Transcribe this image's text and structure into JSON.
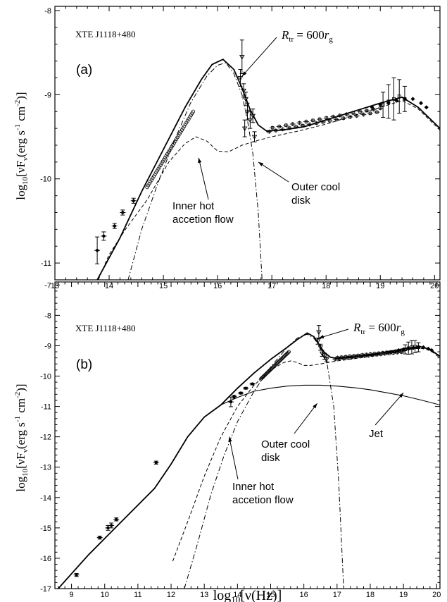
{
  "chart_data": [
    {
      "type": "line",
      "panel_label": "(a)",
      "source_label": "XTE J1118+480",
      "xlabel": "",
      "ylabel": "log10[νFν(erg s-1 cm-2)]",
      "ylabel_parts": {
        "base": "log",
        "base_sub": "10",
        "open": "[νF",
        "nu_sub": "ν",
        "unit": "(erg s",
        "s_exp": "-1",
        "cm": " cm",
        "cm_exp": "-2",
        "close": ")]"
      },
      "xlim": [
        13,
        20.1
      ],
      "ylim": [
        -11.2,
        -7.95
      ],
      "xticks": [
        13,
        14,
        15,
        16,
        17,
        18,
        19,
        20
      ],
      "yticks": [
        -11,
        -10,
        -9,
        -8
      ],
      "annotations": [
        {
          "id": "rtr",
          "parts": {
            "r": "R",
            "r_sub": "tr",
            "eq": " = 600",
            "rg": "r",
            "rg_sub": "g"
          },
          "arrow_to": [
            16.45,
            -8.78
          ]
        },
        {
          "id": "inner",
          "lines": [
            "Inner hot",
            "accetion flow"
          ],
          "arrow_to": [
            15.65,
            -9.75
          ]
        },
        {
          "id": "outer",
          "lines": [
            "Outer cool",
            "disk"
          ],
          "arrow_to": [
            16.75,
            -9.8
          ]
        }
      ],
      "series": [
        {
          "role": "total",
          "style": "solid",
          "points": [
            [
              13.78,
              -11.2
            ],
            [
              14.2,
              -10.7
            ],
            [
              14.6,
              -10.15
            ],
            [
              15.0,
              -9.65
            ],
            [
              15.4,
              -9.15
            ],
            [
              15.7,
              -8.82
            ],
            [
              15.9,
              -8.64
            ],
            [
              16.1,
              -8.58
            ],
            [
              16.3,
              -8.7
            ],
            [
              16.45,
              -8.92
            ],
            [
              16.6,
              -9.18
            ],
            [
              16.75,
              -9.36
            ],
            [
              16.9,
              -9.43
            ],
            [
              17.2,
              -9.42
            ],
            [
              17.6,
              -9.38
            ],
            [
              18.0,
              -9.3
            ],
            [
              18.5,
              -9.2
            ],
            [
              19.0,
              -9.1
            ],
            [
              19.4,
              -9.03
            ],
            [
              19.7,
              -9.15
            ],
            [
              20.1,
              -9.4
            ]
          ]
        },
        {
          "role": "inner_flow",
          "style": "dashed",
          "points": [
            [
              13.8,
              -11.2
            ],
            [
              14.0,
              -10.9
            ],
            [
              14.3,
              -10.6
            ],
            [
              14.7,
              -10.25
            ],
            [
              15.1,
              -9.8
            ],
            [
              15.4,
              -9.58
            ],
            [
              15.6,
              -9.5
            ],
            [
              15.8,
              -9.55
            ],
            [
              16.0,
              -9.67
            ],
            [
              16.2,
              -9.68
            ],
            [
              16.45,
              -9.6
            ],
            [
              16.7,
              -9.55
            ],
            [
              17.0,
              -9.5
            ],
            [
              17.5,
              -9.43
            ],
            [
              18.0,
              -9.35
            ],
            [
              18.5,
              -9.25
            ],
            [
              19.0,
              -9.15
            ],
            [
              19.4,
              -9.07
            ],
            [
              19.7,
              -9.17
            ],
            [
              20.1,
              -9.42
            ]
          ]
        },
        {
          "role": "outer_disk",
          "style": "dashdot",
          "points": [
            [
              14.35,
              -11.2
            ],
            [
              14.6,
              -10.6
            ],
            [
              14.9,
              -10.05
            ],
            [
              15.2,
              -9.55
            ],
            [
              15.5,
              -9.1
            ],
            [
              15.8,
              -8.78
            ],
            [
              16.0,
              -8.65
            ],
            [
              16.15,
              -8.62
            ],
            [
              16.3,
              -8.75
            ],
            [
              16.45,
              -9.0
            ],
            [
              16.55,
              -9.3
            ],
            [
              16.65,
              -9.7
            ],
            [
              16.75,
              -10.4
            ],
            [
              16.82,
              -11.2
            ]
          ]
        }
      ],
      "observations": {
        "radio_ir_points": [
          {
            "x": 13.78,
            "y": -10.85,
            "err": 0.16
          },
          {
            "x": 13.9,
            "y": -10.68,
            "err": 0.05
          },
          {
            "x": 14.1,
            "y": -10.56,
            "err": 0.03
          },
          {
            "x": 14.25,
            "y": -10.4,
            "err": 0.03
          },
          {
            "x": 14.45,
            "y": -10.26,
            "err": 0.03
          }
        ],
        "optical_uv_circles": {
          "x_start": 14.7,
          "x_end": 15.55,
          "y_start": -10.1,
          "y_end": -9.2,
          "count": 42
        },
        "uv_triangles": [
          {
            "x": 16.45,
            "y": -8.55,
            "err": 0.2
          },
          {
            "x": 16.42,
            "y": -8.8,
            "err": 0.1
          },
          {
            "x": 16.48,
            "y": -8.95,
            "err": 0.08
          },
          {
            "x": 16.52,
            "y": -9.05,
            "err": 0.08
          },
          {
            "x": 16.55,
            "y": -9.2,
            "err": 0.1
          },
          {
            "x": 16.6,
            "y": -9.3,
            "err": 0.1
          },
          {
            "x": 16.65,
            "y": -9.25,
            "err": 0.08
          },
          {
            "x": 16.68,
            "y": -9.5,
            "err": 0.06
          },
          {
            "x": 16.5,
            "y": -9.4,
            "err": 0.1
          }
        ],
        "xray_squares": {
          "x_start": 16.95,
          "x_end": 19.0,
          "y_start": -9.42,
          "y_end": -9.18,
          "count": 34
        },
        "hard_xray_points": [
          {
            "x": 19.05,
            "y": -9.12,
            "err": 0.15
          },
          {
            "x": 19.15,
            "y": -9.08,
            "err": 0.2
          },
          {
            "x": 19.25,
            "y": -9.05,
            "err": 0.25
          },
          {
            "x": 19.35,
            "y": -9.02,
            "err": 0.2
          },
          {
            "x": 19.45,
            "y": -9.05,
            "err": 0.15
          }
        ],
        "diamonds": [
          {
            "x": 18.85,
            "y": -9.15
          },
          {
            "x": 19.0,
            "y": -9.12
          },
          {
            "x": 19.15,
            "y": -9.1
          },
          {
            "x": 19.3,
            "y": -9.07
          },
          {
            "x": 19.45,
            "y": -9.05
          },
          {
            "x": 19.6,
            "y": -9.05
          },
          {
            "x": 19.75,
            "y": -9.1
          },
          {
            "x": 19.85,
            "y": -9.15
          }
        ]
      }
    },
    {
      "type": "line",
      "panel_label": "(b)",
      "source_label": "XTE J1118+480",
      "xlabel": "log10[ν(Hz)]",
      "xlabel_parts": {
        "base": "log",
        "base_sub": "10",
        "rest": "[ν(Hz)]"
      },
      "ylabel": "log10[νFν(erg s-1 cm-2)]",
      "ylabel_parts": {
        "base": "log",
        "base_sub": "10",
        "open": "[νF",
        "nu_sub": "ν",
        "unit": "(erg s",
        "s_exp": "-1",
        "cm": " cm",
        "cm_exp": "-2",
        "close": ")]"
      },
      "xlim": [
        8.5,
        20.1
      ],
      "ylim": [
        -17,
        -6.9
      ],
      "xticks": [
        9,
        10,
        11,
        12,
        13,
        14,
        15,
        16,
        17,
        18,
        19,
        20
      ],
      "yticks": [
        -17,
        -16,
        -15,
        -14,
        -13,
        -12,
        -11,
        -10,
        -9,
        -8,
        -7
      ],
      "annotations": [
        {
          "id": "rtr",
          "parts": {
            "r": "R",
            "r_sub": "tr",
            "eq": " = 600",
            "rg": "r",
            "rg_sub": "g"
          },
          "arrow_to": [
            16.45,
            -8.75
          ]
        },
        {
          "id": "outer",
          "lines": [
            "Outer cool",
            "disk"
          ],
          "arrow_to": [
            16.4,
            -10.9
          ]
        },
        {
          "id": "inner",
          "lines": [
            "Inner hot",
            "accetion flow"
          ],
          "arrow_to": [
            13.75,
            -12.0
          ]
        },
        {
          "id": "jet",
          "lines": [
            "Jet"
          ],
          "arrow_to": [
            19.0,
            -10.55
          ]
        }
      ],
      "series": [
        {
          "role": "total",
          "style": "solid",
          "points": [
            [
              8.6,
              -17
            ],
            [
              9.5,
              -15.9
            ],
            [
              10.5,
              -14.8
            ],
            [
              11.5,
              -13.7
            ],
            [
              12.0,
              -12.9
            ],
            [
              12.5,
              -12.0
            ],
            [
              13.0,
              -11.35
            ],
            [
              13.5,
              -10.95
            ],
            [
              14.0,
              -10.4
            ],
            [
              14.5,
              -9.9
            ],
            [
              15.0,
              -9.45
            ],
            [
              15.5,
              -9.05
            ],
            [
              15.8,
              -8.8
            ],
            [
              16.1,
              -8.58
            ],
            [
              16.3,
              -8.7
            ],
            [
              16.45,
              -8.95
            ],
            [
              16.6,
              -9.2
            ],
            [
              16.8,
              -9.38
            ],
            [
              17.0,
              -9.42
            ],
            [
              17.5,
              -9.38
            ],
            [
              18.0,
              -9.3
            ],
            [
              18.5,
              -9.2
            ],
            [
              19.0,
              -9.1
            ],
            [
              19.5,
              -9.03
            ],
            [
              19.8,
              -9.12
            ],
            [
              20.1,
              -9.35
            ]
          ]
        },
        {
          "role": "jet",
          "style": "solid",
          "points": [
            [
              13.5,
              -10.95
            ],
            [
              14.0,
              -10.7
            ],
            [
              14.5,
              -10.5
            ],
            [
              15.0,
              -10.4
            ],
            [
              15.5,
              -10.33
            ],
            [
              16.0,
              -10.3
            ],
            [
              16.5,
              -10.3
            ],
            [
              17.0,
              -10.33
            ],
            [
              17.5,
              -10.38
            ],
            [
              18.0,
              -10.45
            ],
            [
              18.5,
              -10.55
            ],
            [
              19.0,
              -10.65
            ],
            [
              19.5,
              -10.78
            ],
            [
              20.1,
              -10.95
            ]
          ]
        },
        {
          "role": "inner_flow",
          "style": "dashed",
          "points": [
            [
              12.05,
              -16.1
            ],
            [
              12.5,
              -14.8
            ],
            [
              13.0,
              -13.3
            ],
            [
              13.5,
              -12.0
            ],
            [
              14.0,
              -11.0
            ],
            [
              14.5,
              -10.3
            ],
            [
              15.0,
              -9.8
            ],
            [
              15.4,
              -9.55
            ],
            [
              15.6,
              -9.5
            ],
            [
              15.8,
              -9.55
            ],
            [
              16.0,
              -9.65
            ],
            [
              16.2,
              -9.65
            ],
            [
              16.5,
              -9.6
            ],
            [
              17.0,
              -9.5
            ],
            [
              17.5,
              -9.43
            ],
            [
              18.0,
              -9.35
            ],
            [
              18.5,
              -9.25
            ],
            [
              19.0,
              -9.15
            ],
            [
              19.5,
              -9.08
            ],
            [
              19.8,
              -9.15
            ],
            [
              20.1,
              -9.4
            ]
          ]
        },
        {
          "role": "outer_disk",
          "style": "dashdot",
          "points": [
            [
              12.4,
              -17
            ],
            [
              12.8,
              -15.5
            ],
            [
              13.2,
              -13.9
            ],
            [
              13.6,
              -12.6
            ],
            [
              14.0,
              -11.5
            ],
            [
              14.5,
              -10.5
            ],
            [
              15.0,
              -9.7
            ],
            [
              15.5,
              -9.05
            ],
            [
              15.8,
              -8.75
            ],
            [
              16.1,
              -8.62
            ],
            [
              16.3,
              -8.75
            ],
            [
              16.5,
              -9.05
            ],
            [
              16.7,
              -9.6
            ],
            [
              16.9,
              -11.0
            ],
            [
              17.05,
              -13.5
            ],
            [
              17.2,
              -17
            ]
          ]
        }
      ],
      "observations": {
        "radio_points": [
          {
            "x": 9.15,
            "y": -16.55,
            "err": 0.05
          },
          {
            "x": 9.85,
            "y": -15.32,
            "err": 0.05
          },
          {
            "x": 10.1,
            "y": -15.0,
            "err": 0.08
          },
          {
            "x": 10.2,
            "y": -14.92,
            "err": 0.08
          },
          {
            "x": 10.35,
            "y": -14.72,
            "err": 0.05
          },
          {
            "x": 11.55,
            "y": -12.85,
            "err": 0.05
          }
        ],
        "ir_points": [
          {
            "x": 13.8,
            "y": -10.85,
            "err": 0.16
          },
          {
            "x": 13.9,
            "y": -10.68,
            "err": 0.05
          },
          {
            "x": 14.1,
            "y": -10.56,
            "err": 0.03
          },
          {
            "x": 14.25,
            "y": -10.4,
            "err": 0.03
          },
          {
            "x": 14.45,
            "y": -10.26,
            "err": 0.03
          }
        ],
        "optical_uv_circles": {
          "x_start": 14.7,
          "x_end": 15.55,
          "y_start": -10.1,
          "y_end": -9.2,
          "count": 36
        },
        "uv_triangles": [
          {
            "x": 16.45,
            "y": -8.55,
            "err": 0.22
          },
          {
            "x": 16.42,
            "y": -8.85,
            "err": 0.1
          },
          {
            "x": 16.5,
            "y": -9.05,
            "err": 0.1
          },
          {
            "x": 16.55,
            "y": -9.25,
            "err": 0.1
          },
          {
            "x": 16.62,
            "y": -9.35,
            "err": 0.1
          },
          {
            "x": 16.68,
            "y": -9.45,
            "err": 0.08
          }
        ],
        "xray_squares": {
          "x_start": 16.95,
          "x_end": 19.0,
          "y_start": -9.42,
          "y_end": -9.18,
          "count": 34
        },
        "hard_xray_points": [
          {
            "x": 19.05,
            "y": -9.12,
            "err": 0.15
          },
          {
            "x": 19.15,
            "y": -9.08,
            "err": 0.2
          },
          {
            "x": 19.25,
            "y": -9.05,
            "err": 0.22
          },
          {
            "x": 19.35,
            "y": -9.03,
            "err": 0.2
          },
          {
            "x": 19.45,
            "y": -9.05,
            "err": 0.15
          }
        ],
        "diamonds": [
          {
            "x": 18.85,
            "y": -9.15
          },
          {
            "x": 19.0,
            "y": -9.12
          },
          {
            "x": 19.15,
            "y": -9.1
          },
          {
            "x": 19.3,
            "y": -9.07
          },
          {
            "x": 19.45,
            "y": -9.05
          },
          {
            "x": 19.6,
            "y": -9.05
          },
          {
            "x": 19.75,
            "y": -9.1
          },
          {
            "x": 19.85,
            "y": -9.15
          }
        ]
      }
    }
  ]
}
